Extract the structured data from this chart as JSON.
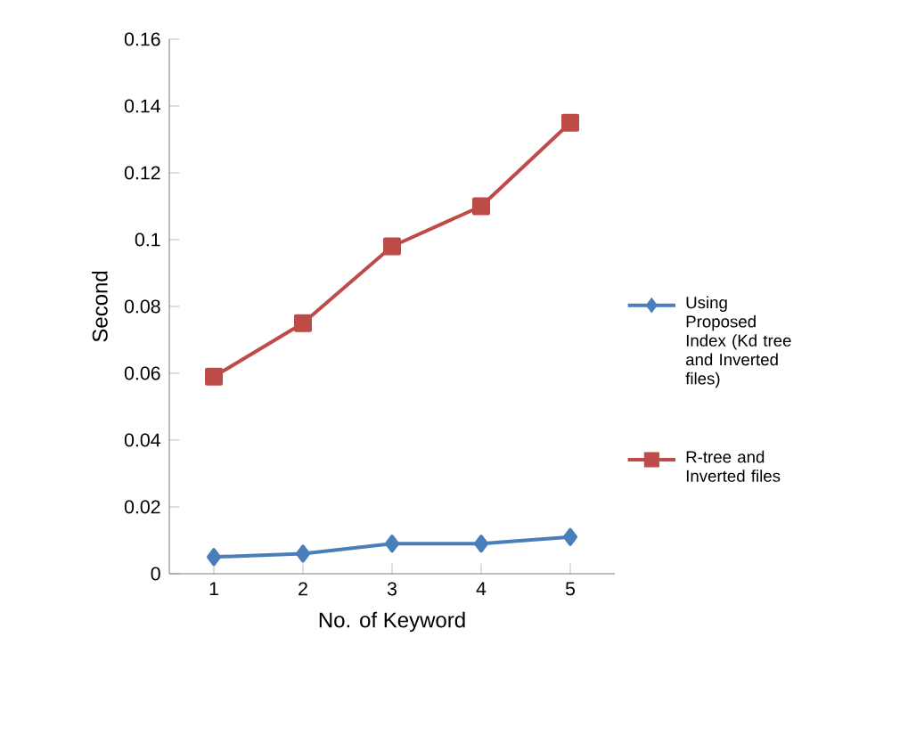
{
  "chart_data": {
    "type": "line",
    "xlabel": "No. of Keyword",
    "ylabel": "Second",
    "categories": [
      "1",
      "2",
      "3",
      "4",
      "5"
    ],
    "series": [
      {
        "name": "Using Proposed Index (Kd tree and Inverted files)",
        "color": "#4a7ebb",
        "marker": "diamond",
        "values": [
          0.005,
          0.006,
          0.009,
          0.009,
          0.011
        ]
      },
      {
        "name": "R-tree and Inverted files",
        "color": "#be4b48",
        "marker": "square",
        "values": [
          0.059,
          0.075,
          0.098,
          0.11,
          0.135
        ]
      }
    ],
    "ylim": [
      0,
      0.16
    ],
    "yticks": [
      0,
      0.02,
      0.04,
      0.06,
      0.08,
      0.1,
      0.12,
      0.14,
      0.16
    ],
    "grid": false,
    "legend": "right",
    "line_style": "solid"
  }
}
